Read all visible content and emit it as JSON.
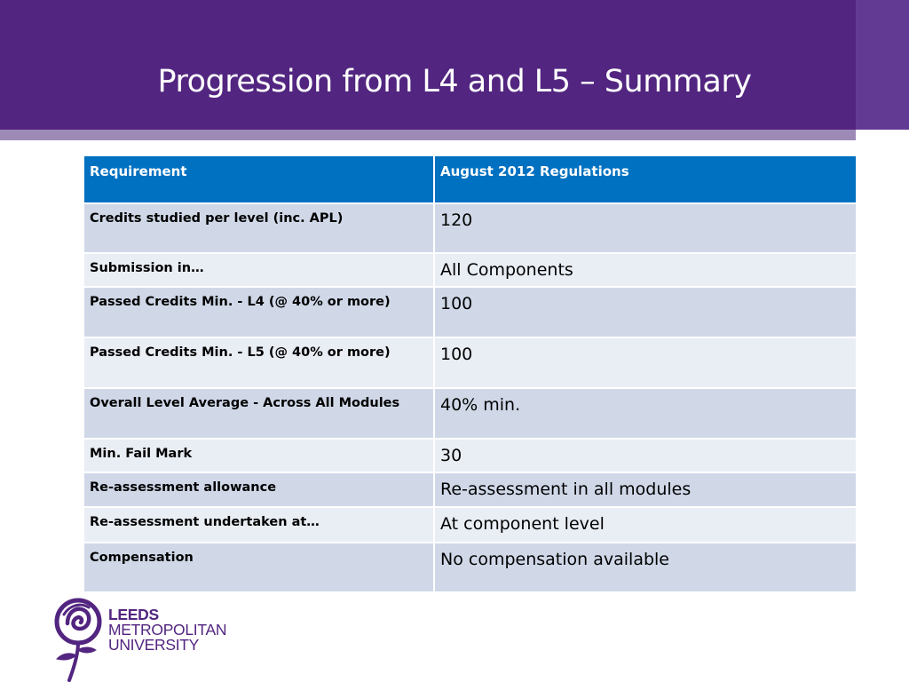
{
  "title": "Progression from L4 and L5 – Summary",
  "table": {
    "headers": [
      "Requirement",
      "August 2012 Regulations"
    ],
    "rows": [
      [
        "Credits studied per level (inc. APL)",
        "120"
      ],
      [
        "Submission in…",
        "All Components"
      ],
      [
        "Passed Credits Min. - L4 (@ 40% or more)",
        "100"
      ],
      [
        "Passed Credits Min. - L5 (@ 40% or more)",
        "100"
      ],
      [
        "Overall Level Average - Across All Modules",
        "40% min."
      ],
      [
        "Min. Fail Mark",
        "30"
      ],
      [
        "Re-assessment allowance",
        "Re-assessment in all modules"
      ],
      [
        "Re-assessment undertaken at…",
        "At component level"
      ],
      [
        "Compensation",
        "No compensation available"
      ]
    ]
  },
  "logo": {
    "lines": [
      "LEEDS",
      "METROPOLITAN",
      "UNIVERSITY"
    ],
    "icon": "rose-emblem-icon"
  },
  "colors": {
    "header": "#522580",
    "header_strip": "#9d8ab6",
    "table_header": "#0070c0",
    "row_dark": "#d0d8e8",
    "row_light": "#e9edf4"
  }
}
